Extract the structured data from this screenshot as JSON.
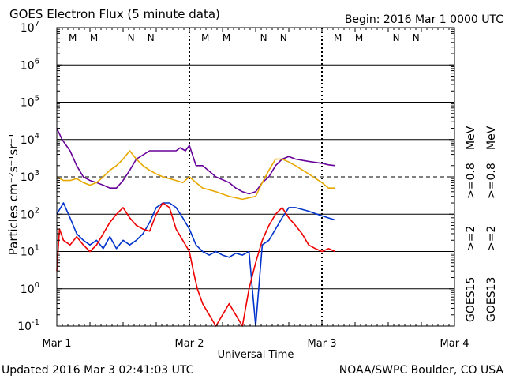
{
  "header": {
    "title": "GOES Electron Flux (5 minute data)",
    "begin": "Begin: 2016 Mar 1 0000 UTC"
  },
  "footer": {
    "updated": "Updated 2016 Mar  3 02:41:03 UTC",
    "credit": "NOAA/SWPC Boulder, CO USA"
  },
  "colors": {
    "red": "#ee0000",
    "blue": "#0033cc",
    "purple": "#660099",
    "orange": "#e8a800",
    "black": "#000000"
  },
  "chart_data": {
    "type": "line",
    "title": "GOES Electron Flux (5 minute data)",
    "xlabel": "Universal Time",
    "ylabel": "Particles cm⁻²s⁻¹sr⁻¹",
    "yscale": "log",
    "xlim": [
      0,
      3
    ],
    "ylim": [
      0.1,
      10000000
    ],
    "x_unit": "days since 2016 Mar 1 0000 UTC",
    "x_ticks": [
      {
        "x": 0,
        "label": "Mar 1"
      },
      {
        "x": 1,
        "label": "Mar 2"
      },
      {
        "x": 2,
        "label": "Mar 3"
      },
      {
        "x": 3,
        "label": "Mar 4"
      }
    ],
    "y_ticks": [
      {
        "base": "10",
        "exp": "7",
        "value": 10000000
      },
      {
        "base": "10",
        "exp": "6",
        "value": 1000000
      },
      {
        "base": "10",
        "exp": "5",
        "value": 100000
      },
      {
        "base": "10",
        "exp": "4",
        "value": 10000
      },
      {
        "base": "10",
        "exp": "3",
        "value": 1000
      },
      {
        "base": "10",
        "exp": "2",
        "value": 100
      },
      {
        "base": "10",
        "exp": "1",
        "value": 10
      },
      {
        "base": "10",
        "exp": "0",
        "value": 1
      },
      {
        "base": "10",
        "exp": "-1",
        "value": 0.1
      }
    ],
    "threshold": {
      "value": 1000,
      "style": "dashed"
    },
    "noon_markers": [
      {
        "x": 0.12,
        "label": "M",
        "color": "red"
      },
      {
        "x": 0.28,
        "label": "M",
        "color": "blue"
      },
      {
        "x": 0.56,
        "label": "N",
        "color": "red"
      },
      {
        "x": 0.71,
        "label": "N",
        "color": "blue"
      },
      {
        "x": 1.12,
        "label": "M",
        "color": "red"
      },
      {
        "x": 1.28,
        "label": "M",
        "color": "blue"
      },
      {
        "x": 1.56,
        "label": "N",
        "color": "red"
      },
      {
        "x": 1.71,
        "label": "N",
        "color": "blue"
      },
      {
        "x": 2.12,
        "label": "M",
        "color": "red"
      },
      {
        "x": 2.28,
        "label": "M",
        "color": "blue"
      },
      {
        "x": 2.56,
        "label": "N",
        "color": "red"
      },
      {
        "x": 2.71,
        "label": "N",
        "color": "blue"
      }
    ],
    "day_marker_lines": [
      1,
      2
    ],
    "legend": {
      "placement": "right",
      "groups": [
        {
          "satellite": "GOES15",
          "entries": [
            {
              "label": ">=2",
              "color": "blue"
            },
            {
              "label": ">=0.8",
              "color": "purple"
            }
          ]
        },
        {
          "satellite": "GOES13",
          "entries": [
            {
              "label": ">=2",
              "color": "red"
            },
            {
              "label": ">=0.8",
              "color": "orange"
            }
          ]
        }
      ],
      "unit": "MeV"
    },
    "series": [
      {
        "name": "GOES15 >=0.8 MeV",
        "color": "purple",
        "x": [
          0.0,
          0.04,
          0.1,
          0.15,
          0.2,
          0.25,
          0.3,
          0.35,
          0.4,
          0.45,
          0.5,
          0.55,
          0.6,
          0.7,
          0.8,
          0.9,
          0.93,
          0.97,
          1.0,
          1.05,
          1.1,
          1.2,
          1.3,
          1.35,
          1.4,
          1.45,
          1.5,
          1.55,
          1.6,
          1.65,
          1.7,
          1.75,
          1.8,
          1.9,
          2.0,
          2.05,
          2.1
        ],
        "y": [
          20000,
          10000,
          5000,
          2000,
          1000,
          800,
          700,
          600,
          500,
          500,
          800,
          1500,
          3000,
          5000,
          5000,
          5000,
          6000,
          5000,
          7000,
          2000,
          2000,
          1000,
          700,
          500,
          400,
          350,
          400,
          700,
          1000,
          2000,
          3000,
          3500,
          3000,
          2600,
          2300,
          2100,
          2000
        ]
      },
      {
        "name": "GOES13 >=0.8 MeV",
        "color": "orange",
        "x": [
          0.0,
          0.05,
          0.1,
          0.15,
          0.2,
          0.25,
          0.3,
          0.35,
          0.4,
          0.45,
          0.5,
          0.55,
          0.6,
          0.65,
          0.7,
          0.75,
          0.8,
          0.85,
          0.9,
          0.95,
          1.0,
          1.05,
          1.1,
          1.15,
          1.2,
          1.3,
          1.4,
          1.5,
          1.55,
          1.6,
          1.65,
          1.7,
          1.75,
          1.8,
          1.9,
          2.0,
          2.05,
          2.1
        ],
        "y": [
          1000,
          800,
          800,
          900,
          700,
          600,
          700,
          1000,
          1500,
          2000,
          3000,
          5000,
          3000,
          2000,
          1500,
          1200,
          1000,
          900,
          800,
          700,
          1000,
          700,
          500,
          450,
          400,
          300,
          250,
          300,
          700,
          1500,
          3000,
          3000,
          2500,
          2000,
          1200,
          700,
          500,
          500
        ]
      },
      {
        "name": "GOES15 >=2 MeV",
        "color": "blue",
        "x": [
          0.0,
          0.05,
          0.1,
          0.15,
          0.2,
          0.25,
          0.3,
          0.35,
          0.4,
          0.45,
          0.5,
          0.55,
          0.6,
          0.65,
          0.7,
          0.75,
          0.8,
          0.85,
          0.9,
          0.95,
          1.0,
          1.05,
          1.1,
          1.15,
          1.2,
          1.25,
          1.3,
          1.35,
          1.4,
          1.45,
          1.5,
          1.55,
          1.6,
          1.65,
          1.7,
          1.75,
          1.8,
          1.9,
          2.0,
          2.1
        ],
        "y": [
          100,
          200,
          80,
          30,
          20,
          15,
          20,
          12,
          25,
          12,
          20,
          15,
          20,
          30,
          60,
          150,
          200,
          200,
          150,
          80,
          40,
          15,
          10,
          8,
          10,
          8,
          7,
          9,
          8,
          10,
          0.1,
          15,
          20,
          40,
          80,
          150,
          150,
          120,
          90,
          70
        ]
      },
      {
        "name": "GOES13 >=2 MeV",
        "color": "red",
        "x": [
          0.0,
          0.02,
          0.05,
          0.1,
          0.15,
          0.2,
          0.25,
          0.3,
          0.35,
          0.4,
          0.45,
          0.5,
          0.55,
          0.6,
          0.65,
          0.7,
          0.75,
          0.8,
          0.85,
          0.9,
          0.95,
          1.0,
          1.03,
          1.06,
          1.1,
          1.15,
          1.2,
          1.25,
          1.3,
          1.35,
          1.4,
          1.45,
          1.5,
          1.55,
          1.6,
          1.65,
          1.7,
          1.75,
          1.8,
          1.85,
          1.9,
          1.95,
          2.0,
          2.05,
          2.1
        ],
        "y": [
          3,
          40,
          20,
          15,
          25,
          15,
          10,
          15,
          30,
          60,
          100,
          150,
          80,
          50,
          40,
          35,
          100,
          200,
          150,
          40,
          20,
          10,
          3,
          1,
          0.4,
          0.2,
          0.1,
          0.2,
          0.4,
          0.2,
          0.1,
          1,
          5,
          20,
          50,
          100,
          150,
          80,
          50,
          30,
          15,
          12,
          10,
          12,
          10
        ]
      }
    ]
  }
}
